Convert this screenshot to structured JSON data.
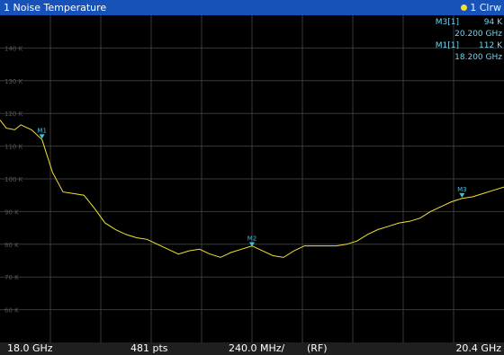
{
  "window": {
    "title": "1 Noise Temperature",
    "trace_label": "1 Clrw"
  },
  "marker_table": [
    {
      "label": "M3[1]",
      "value": "94 K",
      "freq": "20.200 GHz"
    },
    {
      "label": "M1[1]",
      "value": "112 K",
      "freq": "18.200 GHz"
    }
  ],
  "footer": {
    "start": "18.0 GHz",
    "points": "481 pts",
    "span_per_div": "240.0 MHz/",
    "mode": "(RF)",
    "stop": "20.4 GHz"
  },
  "colors": {
    "trace": "#f2e230",
    "marker": "#39c3e6",
    "titlebar": "#1652b8",
    "grid": "#3a3a3a"
  },
  "chart_data": {
    "type": "line",
    "x_unit": "GHz",
    "y_unit": "K",
    "xlim": [
      18.0,
      20.4
    ],
    "ylim": [
      50,
      150
    ],
    "y_tick_labels": [
      "140 K",
      "130 K",
      "120 K",
      "110 K",
      "100 K",
      "90 K",
      "80 K",
      "70 K",
      "60 K"
    ],
    "y_tick_values": [
      140,
      130,
      120,
      110,
      100,
      90,
      80,
      70,
      60
    ],
    "grid": true,
    "series": [
      {
        "x": [
          18.0,
          18.03,
          18.07,
          18.1,
          18.15,
          18.2,
          18.25,
          18.3,
          18.35,
          18.4,
          18.45,
          18.5,
          18.55,
          18.6,
          18.65,
          18.7,
          18.75,
          18.8,
          18.85,
          18.9,
          18.95,
          19.0,
          19.05,
          19.1,
          19.15,
          19.2,
          19.25,
          19.3,
          19.35,
          19.4,
          19.45,
          19.5,
          19.55,
          19.6,
          19.65,
          19.7,
          19.75,
          19.8,
          19.85,
          19.9,
          19.95,
          20.0,
          20.05,
          20.1,
          20.15,
          20.2,
          20.25,
          20.3,
          20.35,
          20.4
        ],
        "y": [
          118,
          115.5,
          115,
          116.5,
          115,
          112,
          102,
          96,
          95.5,
          95,
          91,
          86.5,
          84.5,
          83,
          82,
          81.5,
          80,
          78.5,
          77,
          78,
          78.5,
          77,
          76,
          77.5,
          78.5,
          79.5,
          78,
          76.5,
          76,
          78,
          79.5,
          79.5,
          79.5,
          79.5,
          80,
          81,
          83,
          84.5,
          85.5,
          86.5,
          87,
          88,
          90,
          91.5,
          93,
          94,
          94.5,
          95.5,
          96.5,
          97.5
        ]
      }
    ],
    "markers": [
      {
        "name": "M1",
        "x": 18.2,
        "y": 112
      },
      {
        "name": "M2",
        "x": 19.2,
        "y": 79
      },
      {
        "name": "M3",
        "x": 20.2,
        "y": 94
      }
    ]
  }
}
